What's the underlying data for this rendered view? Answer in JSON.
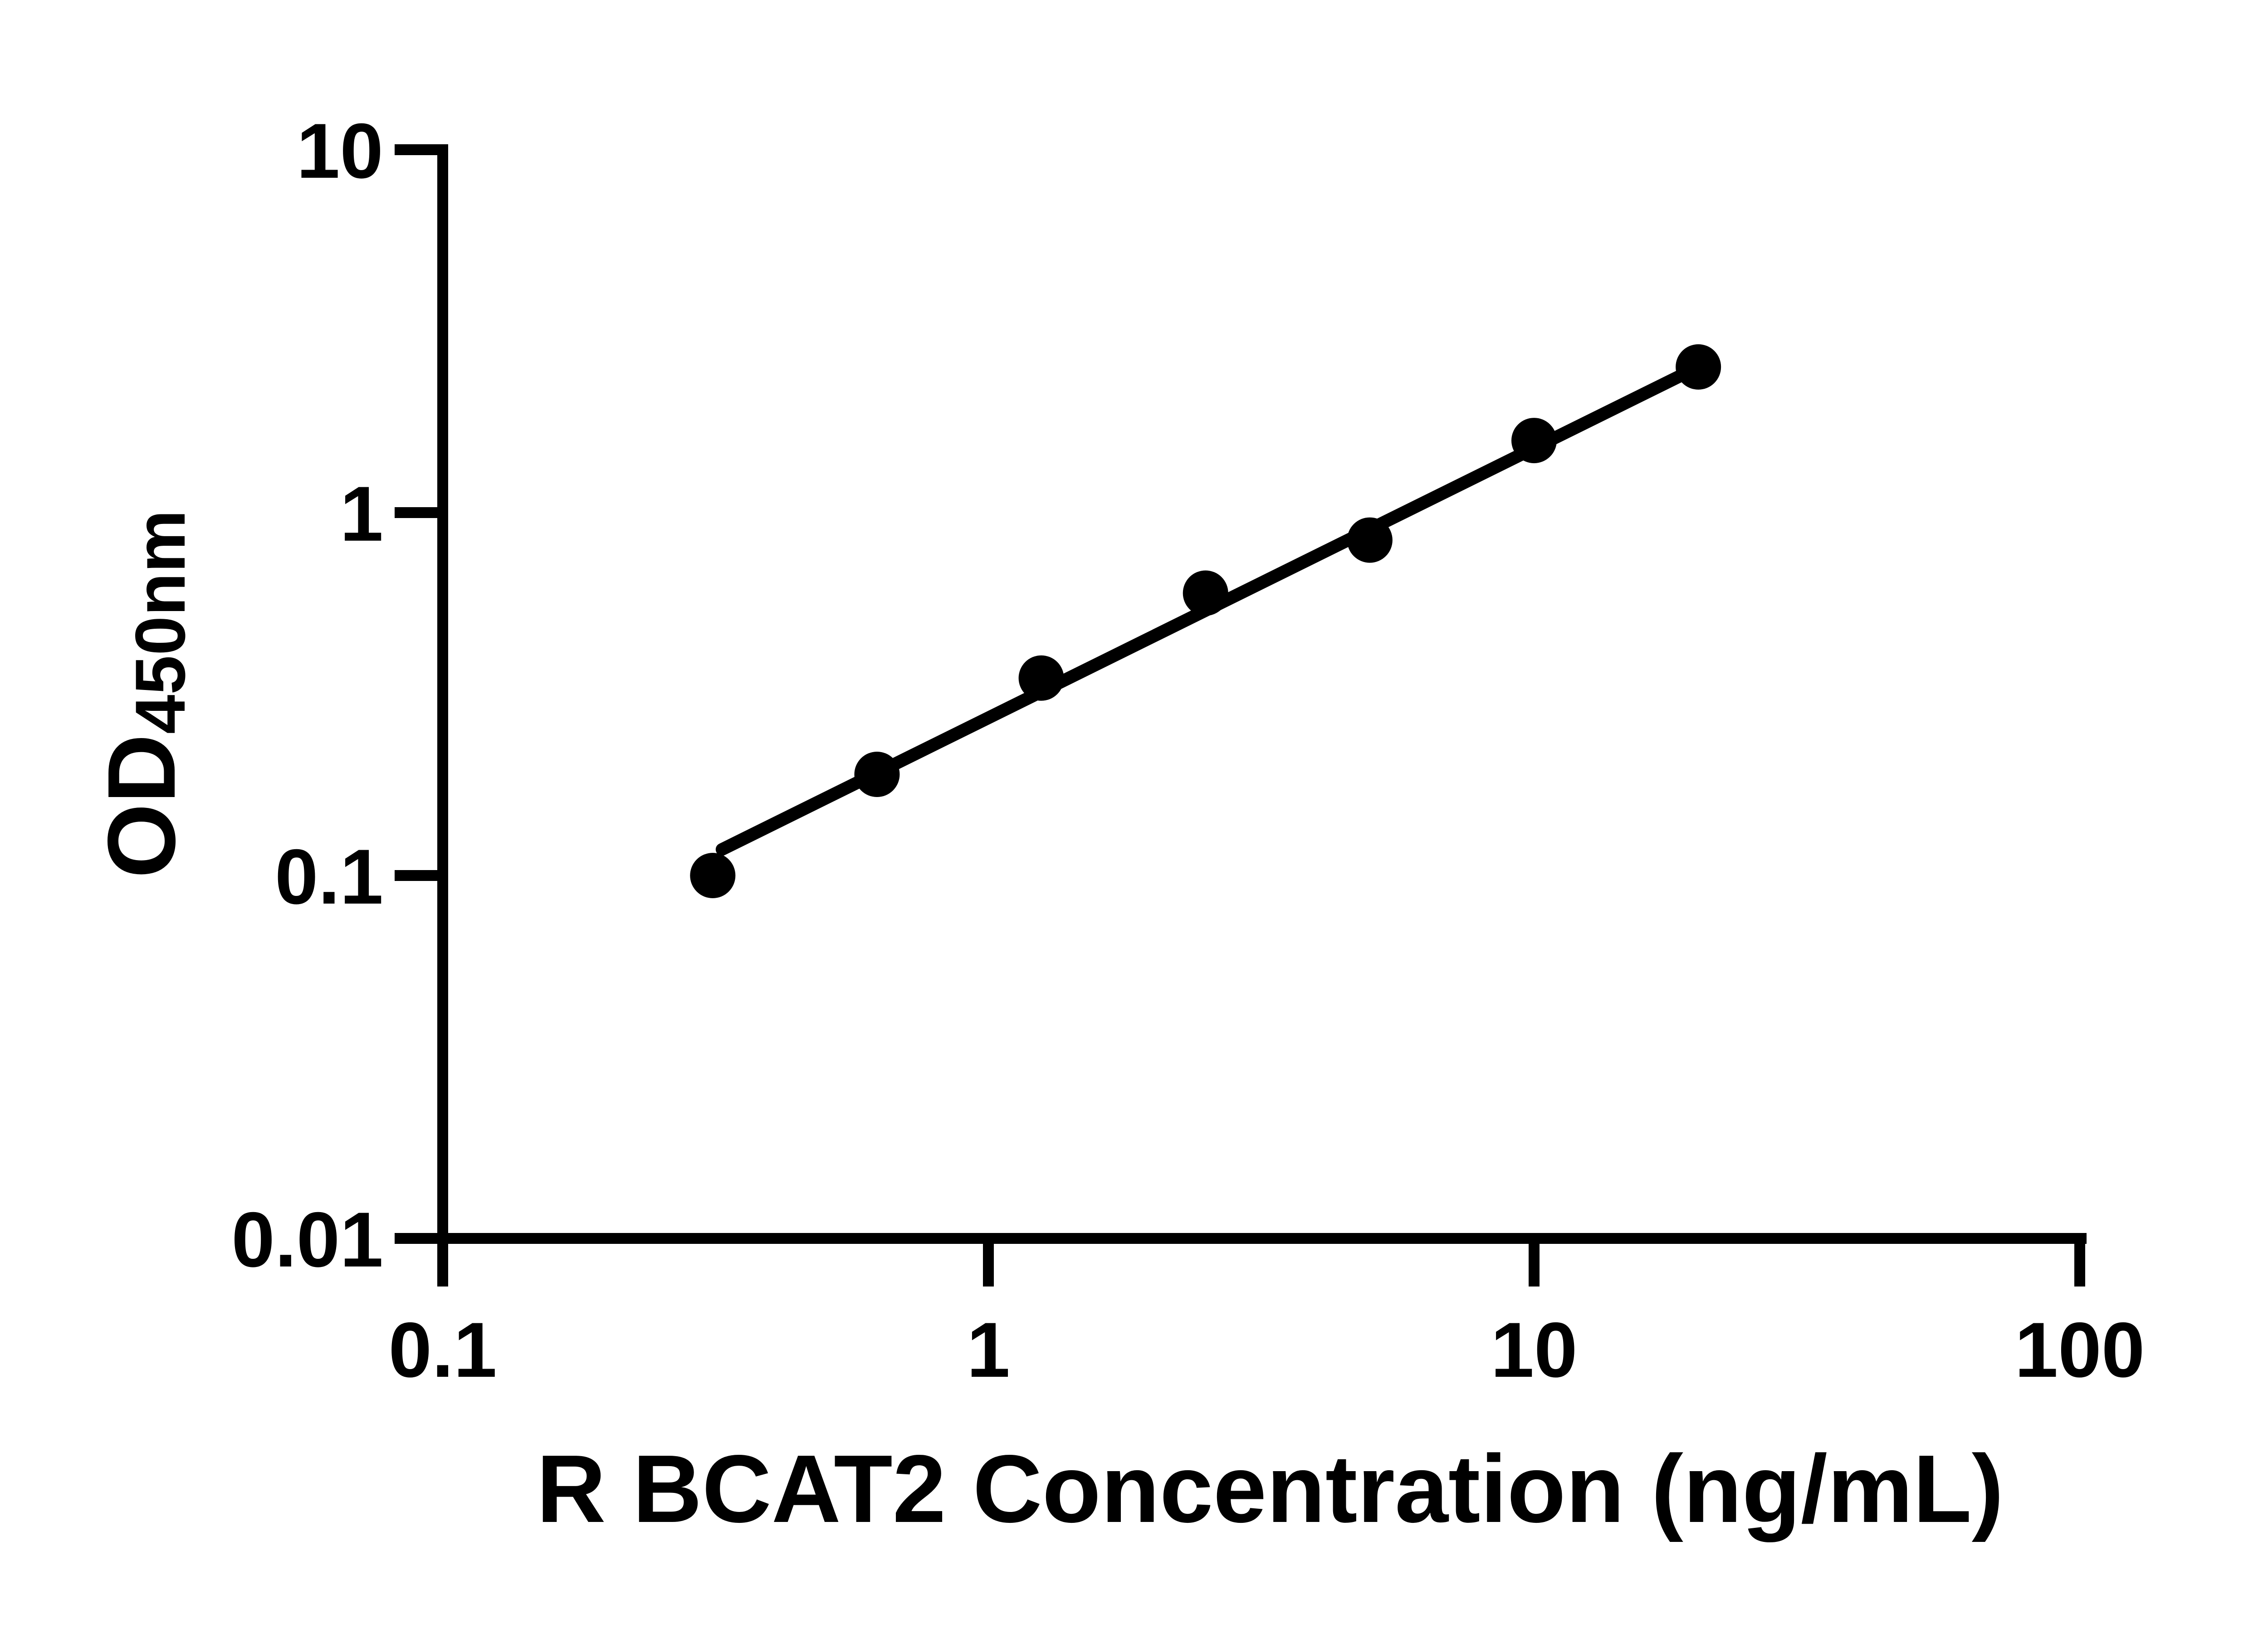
{
  "figure": {
    "background_color": "#ffffff",
    "ink_color": "#000000"
  },
  "chart_data": {
    "type": "scatter",
    "title": "",
    "xlabel": "R BCAT2 Concentration (ng/mL)",
    "ylabel_main": "OD",
    "ylabel_sub": "450nm",
    "x_scale": "log10",
    "y_scale": "log10",
    "xlim": [
      0.1,
      100
    ],
    "ylim": [
      0.01,
      10
    ],
    "grid": false,
    "legend": false,
    "x_ticks": [
      {
        "value": 0.1,
        "label": "0.1"
      },
      {
        "value": 1,
        "label": "1"
      },
      {
        "value": 10,
        "label": "10"
      },
      {
        "value": 100,
        "label": "100"
      }
    ],
    "y_ticks": [
      {
        "value": 0.01,
        "label": "0.01"
      },
      {
        "value": 0.1,
        "label": "0.1"
      },
      {
        "value": 1,
        "label": "1"
      },
      {
        "value": 10,
        "label": "10"
      }
    ],
    "series": [
      {
        "name": "standard-curve-points",
        "marker": "filled-circle",
        "color": "#000000",
        "points": [
          {
            "x": 0.3125,
            "y": 0.1
          },
          {
            "x": 0.625,
            "y": 0.19
          },
          {
            "x": 1.25,
            "y": 0.35
          },
          {
            "x": 2.5,
            "y": 0.6
          },
          {
            "x": 5,
            "y": 0.84
          },
          {
            "x": 10,
            "y": 1.58
          },
          {
            "x": 20,
            "y": 2.52
          }
        ]
      }
    ],
    "fit_line": {
      "x1": 0.325,
      "y1": 0.118,
      "x2": 20,
      "y2": 2.52
    }
  }
}
